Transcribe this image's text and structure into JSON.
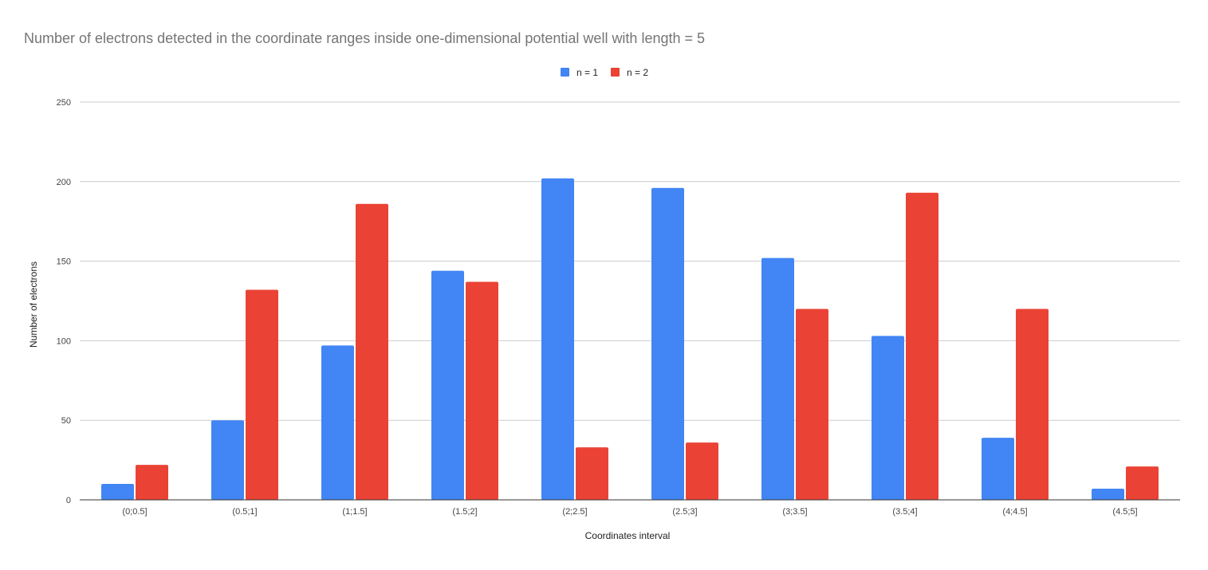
{
  "chart_data": {
    "type": "bar",
    "title": "Number of electrons detected in the coordinate ranges inside one-dimensional potential well with length = 5",
    "xlabel": "Coordinates interval",
    "ylabel": "Number of electrons",
    "categories": [
      "(0;0.5]",
      "(0.5;1]",
      "(1;1.5]",
      "(1.5;2]",
      "(2;2.5]",
      "(2.5;3]",
      "(3;3.5]",
      "(3.5;4]",
      "(4;4.5]",
      "(4.5;5]"
    ],
    "series": [
      {
        "name": "n = 1",
        "color": "#4285f4",
        "values": [
          10,
          50,
          97,
          144,
          202,
          196,
          152,
          103,
          39,
          7
        ]
      },
      {
        "name": "n = 2",
        "color": "#ea4335",
        "values": [
          22,
          132,
          186,
          137,
          33,
          36,
          120,
          193,
          120,
          21
        ]
      }
    ],
    "ylim": [
      0,
      250
    ],
    "yticks": [
      0,
      50,
      100,
      150,
      200,
      250
    ],
    "grid": true,
    "legend_position": "top-center"
  }
}
